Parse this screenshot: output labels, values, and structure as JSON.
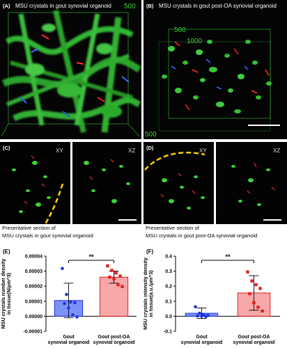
{
  "panels": {
    "A": {
      "label": "(A)",
      "title": "MSU crystals in gout synovial organoid",
      "tick": "500"
    },
    "B": {
      "label": "(B)",
      "title": "MSU crystals in gout post-OA synovial organoid",
      "ticks": [
        "500",
        "1000",
        "500"
      ]
    },
    "C": {
      "label": "(C)",
      "xy": "XY",
      "xz": "XZ"
    },
    "D": {
      "label": "(D)",
      "xy": "XY",
      "xz": "XZ"
    }
  },
  "captions": {
    "c_line1": "Presentative section of",
    "c_line2": "MSU crystals in gout synovial organoid",
    "d_line1": "Presentative section of",
    "d_line2": "MSU crystals in gout post-OA synovial organoid"
  },
  "colors": {
    "bar1": "#4f6df5",
    "bar2": "#f58b8b",
    "dot1": "#2233dd",
    "dot2": "#e02020",
    "green": "#3bd43b",
    "yellow": "#ffd400"
  },
  "chart_data": [
    {
      "panel": "(E)",
      "type": "bar",
      "ylabel_lines": [
        "MSU crystals number density",
        "in tissue(N/μm^3)"
      ],
      "categories": [
        "Gout synovial organoid",
        "Gout post-OA synovial organoid"
      ],
      "category_lines": [
        [
          "Gout",
          "synovial organoid"
        ],
        [
          "Gout post-OA",
          "synovial organoid"
        ]
      ],
      "values": [
        1.05e-05,
        2.6e-05
      ],
      "errors": [
        1.15e-05,
        4e-06
      ],
      "points": [
        [
          3.18e-05,
          1.45e-05,
          9.5e-06,
          9e-06,
          8.5e-06,
          5.5e-06,
          1e-06,
          -5e-07
        ],
        [
          3.35e-05,
          3.05e-05,
          2.875e-05,
          2.675e-05,
          2.6e-05,
          2.5e-05,
          2.1e-05,
          1.975e-05
        ]
      ],
      "ylim": [
        -1e-05,
        4e-05
      ],
      "yticks": [
        -1e-05,
        0.0,
        1e-05,
        2e-05,
        3e-05,
        4e-05
      ],
      "ytick_labels": [
        "-0.00001",
        "0.00000",
        "0.00001",
        "0.00002",
        "0.00003",
        "0.00004"
      ],
      "significance": "**"
    },
    {
      "panel": "(F)",
      "type": "bar",
      "ylabel_lines": [
        "MSU crystals intensity density",
        "in tissue(a.u./μm^3)"
      ],
      "categories": [
        "Gout synovial organoid",
        "Gout post-OA synovial organoid"
      ],
      "category_lines": [
        [
          "Gout",
          "synovial organoid"
        ],
        [
          "Gout post-OA",
          "synovial organoid"
        ]
      ],
      "values": [
        0.02,
        0.155
      ],
      "errors": [
        0.035,
        0.115
      ],
      "points": [
        [
          0.063,
          0.02,
          0.012,
          0.005,
          0.002,
          0.0,
          -0.002
        ],
        [
          0.295,
          0.235,
          0.21,
          0.185,
          0.15,
          0.09,
          0.06,
          0.035
        ]
      ],
      "ylim": [
        -0.1,
        0.4
      ],
      "yticks": [
        -0.1,
        0.0,
        0.1,
        0.2,
        0.3,
        0.4
      ],
      "ytick_labels": [
        "-0.1",
        "0.0",
        "0.1",
        "0.2",
        "0.3",
        "0.4"
      ],
      "significance": "**"
    }
  ]
}
